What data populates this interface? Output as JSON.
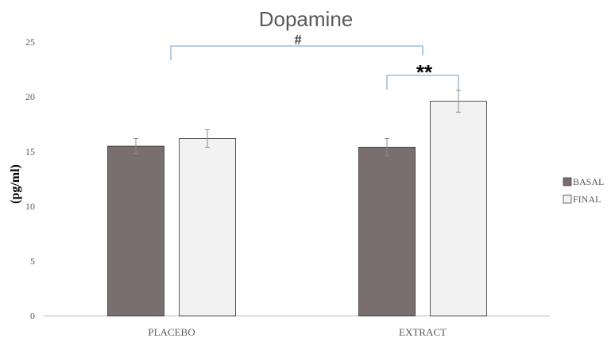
{
  "chart_data": {
    "type": "bar",
    "title": "Dopamine",
    "xlabel": "",
    "ylabel": "(pg/ml)",
    "ylim": [
      0,
      25
    ],
    "yticks": [
      "0",
      "5",
      "10",
      "15",
      "20",
      "25"
    ],
    "categories": [
      "PLACEBO",
      "EXTRACT"
    ],
    "series": [
      {
        "name": "BASAL",
        "values": [
          15.5,
          15.4
        ],
        "errors": [
          0.7,
          0.8
        ],
        "color": "#7a6f6f"
      },
      {
        "name": "FINAL",
        "values": [
          16.2,
          19.6
        ],
        "errors": [
          0.8,
          1.0
        ],
        "color": "#f2f2f2"
      }
    ],
    "grid": false,
    "legend_position": "right",
    "annotations": [
      {
        "text": "#",
        "from": "PLACEBO BASAL",
        "to": "EXTRACT BASAL"
      },
      {
        "text": "**",
        "from": "EXTRACT BASAL",
        "to": "EXTRACT FINAL"
      }
    ],
    "bracket_color": "#8fb0cc"
  }
}
